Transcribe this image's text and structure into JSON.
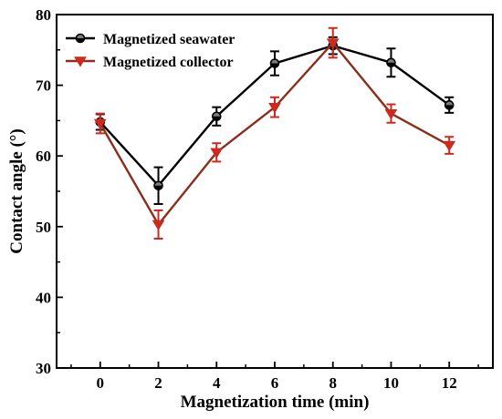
{
  "chart_data": {
    "type": "line",
    "xlabel": "Magnetization time (min)",
    "ylabel": "Contact angle (°)",
    "x": [
      0,
      2,
      4,
      6,
      8,
      10,
      12
    ],
    "xlim": [
      -1.5,
      13.5
    ],
    "ylim": [
      30,
      80
    ],
    "xticks": [
      0,
      2,
      4,
      6,
      8,
      10,
      12
    ],
    "yticks": [
      30,
      40,
      50,
      60,
      70,
      80
    ],
    "grid": false,
    "legend_position": "top-left",
    "series": [
      {
        "name": "Magnetized seawater",
        "color": "#000000",
        "marker": "circle",
        "values": [
          64.8,
          55.8,
          65.6,
          73.1,
          75.6,
          73.2,
          67.2
        ],
        "errors": [
          1.1,
          2.6,
          1.3,
          1.7,
          1.2,
          2.0,
          1.1
        ]
      },
      {
        "name": "Magnetized collector",
        "color": "#cc2a1e",
        "line_color": "#8b2e1b",
        "marker": "triangle-down",
        "values": [
          64.6,
          50.3,
          60.5,
          66.9,
          76.0,
          66.0,
          61.5
        ],
        "errors": [
          1.4,
          2.0,
          1.3,
          1.4,
          2.1,
          1.3,
          1.2
        ]
      }
    ]
  }
}
